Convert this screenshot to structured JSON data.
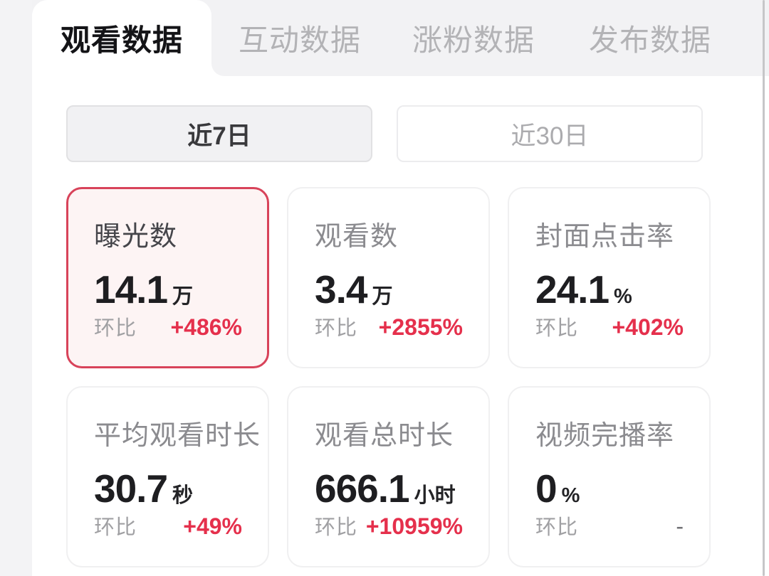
{
  "tabs": [
    {
      "label": "观看数据",
      "active": true
    },
    {
      "label": "互动数据",
      "active": false
    },
    {
      "label": "涨粉数据",
      "active": false
    },
    {
      "label": "发布数据",
      "active": false
    }
  ],
  "date_range": {
    "options": [
      {
        "label": "近7日",
        "selected": true
      },
      {
        "label": "近30日",
        "selected": false
      }
    ]
  },
  "metrics": [
    {
      "title": "曝光数",
      "value": "14.1",
      "unit": "万",
      "compare_label": "环比",
      "change": "+486%",
      "selected": true
    },
    {
      "title": "观看数",
      "value": "3.4",
      "unit": "万",
      "compare_label": "环比",
      "change": "+2855%",
      "selected": false
    },
    {
      "title": "封面点击率",
      "value": "24.1",
      "unit": "%",
      "compare_label": "环比",
      "change": "+402%",
      "selected": false
    },
    {
      "title": "平均观看时长",
      "value": "30.7",
      "unit": "秒",
      "compare_label": "环比",
      "change": "+49%",
      "selected": false
    },
    {
      "title": "观看总时长",
      "value": "666.1",
      "unit": "小时",
      "compare_label": "环比",
      "change": "+10959%",
      "selected": false
    },
    {
      "title": "视频完播率",
      "value": "0",
      "unit": "%",
      "compare_label": "环比",
      "change": "-",
      "selected": false,
      "neutral": true
    }
  ],
  "colors": {
    "accent_red": "#e5304c",
    "selected_card_border": "#d8435a",
    "selected_card_bg": "#fdf4f4",
    "chrome_gray": "#f2f2f4"
  }
}
